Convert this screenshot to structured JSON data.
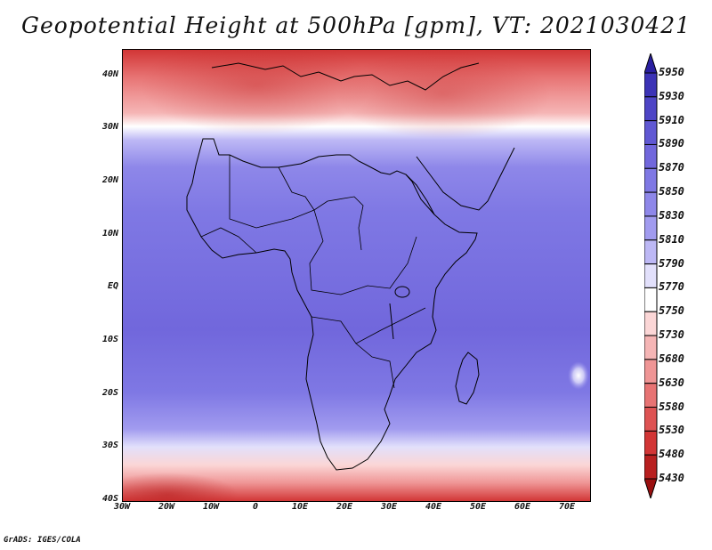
{
  "title": "Geopotential Height at 500hPa [gpm], VT: 2021030421",
  "footer": "GrADS: IGES/COLA",
  "lat_ticks": [
    {
      "label": "40N",
      "lat": 40
    },
    {
      "label": "30N",
      "lat": 30
    },
    {
      "label": "20N",
      "lat": 20
    },
    {
      "label": "10N",
      "lat": 10
    },
    {
      "label": "EQ",
      "lat": 0
    },
    {
      "label": "10S",
      "lat": -10
    },
    {
      "label": "20S",
      "lat": -20
    },
    {
      "label": "30S",
      "lat": -30
    },
    {
      "label": "40S",
      "lat": -40
    }
  ],
  "lon_ticks": [
    {
      "label": "30W",
      "lon": -30
    },
    {
      "label": "20W",
      "lon": -20
    },
    {
      "label": "10W",
      "lon": -10
    },
    {
      "label": "0",
      "lon": 0
    },
    {
      "label": "10E",
      "lon": 10
    },
    {
      "label": "20E",
      "lon": 20
    },
    {
      "label": "30E",
      "lon": 30
    },
    {
      "label": "40E",
      "lon": 40
    },
    {
      "label": "50E",
      "lon": 50
    },
    {
      "label": "60E",
      "lon": 60
    },
    {
      "label": "70E",
      "lon": 70
    }
  ],
  "colorbar": {
    "levels": [
      "5950",
      "5930",
      "5910",
      "5890",
      "5870",
      "5850",
      "5830",
      "5810",
      "5790",
      "5770",
      "5750",
      "5730",
      "5680",
      "5630",
      "5580",
      "5530",
      "5480",
      "5430"
    ],
    "colors": [
      "#2a1fa0",
      "#3c33b6",
      "#4e45c6",
      "#6058d3",
      "#7167dc",
      "#7f78e4",
      "#8e87e9",
      "#a19bef",
      "#bdb8f5",
      "#e2e0fb",
      "#ffffff",
      "#fbd6d6",
      "#f5b5b5",
      "#ef9595",
      "#e77373",
      "#de5353",
      "#d23636",
      "#b82020",
      "#9a1010"
    ]
  }
}
